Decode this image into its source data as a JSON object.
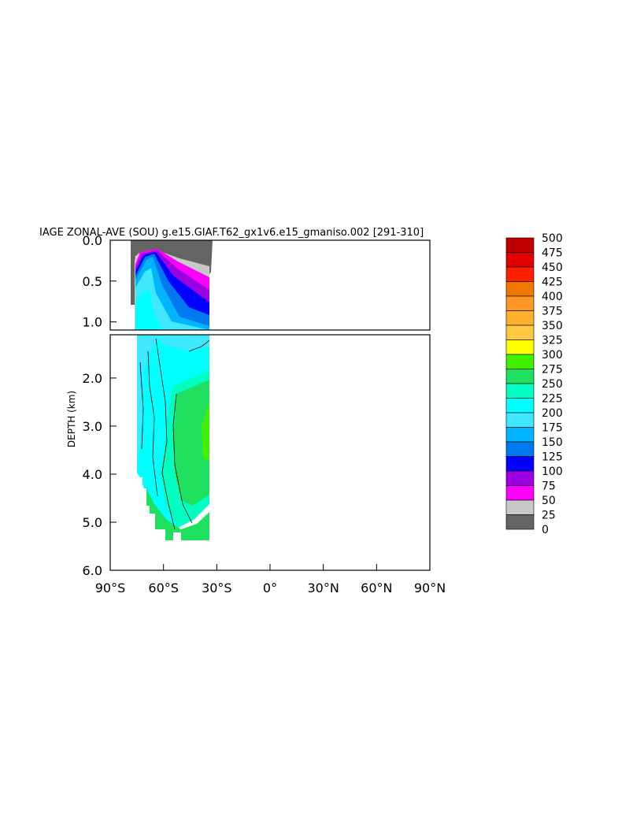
{
  "chart_data": {
    "type": "heatmap",
    "title": "IAGE ZONAL-AVE (SOU) g.e15.GIAF.T62_gx1v6.e15_gmaniso.002 [291-310]",
    "ylabel": "DEPTH (km)",
    "x_ticks": [
      "90°S",
      "60°S",
      "30°S",
      "0°",
      "30°N",
      "60°N",
      "90°N"
    ],
    "x_range": [
      -90,
      90
    ],
    "upper_panel": {
      "y_range": [
        0.0,
        1.1
      ],
      "y_ticks": [
        "0.0",
        "0.5",
        "1.0"
      ]
    },
    "lower_panel": {
      "y_range": [
        1.1,
        6.0
      ],
      "y_ticks": [
        "2.0",
        "3.0",
        "4.0",
        "5.0",
        "6.0"
      ]
    },
    "colorbar": {
      "levels": [
        "500",
        "475",
        "450",
        "425",
        "400",
        "375",
        "350",
        "325",
        "300",
        "275",
        "250",
        "225",
        "200",
        "175",
        "150",
        "125",
        "100",
        "75",
        "50",
        "25",
        "0"
      ],
      "colors": [
        "#c00000",
        "#e00000",
        "#ff2000",
        "#f07800",
        "#ff9628",
        "#ffb030",
        "#ffc840",
        "#ffff00",
        "#40f000",
        "#20e060",
        "#00ffc0",
        "#00ffff",
        "#40e8ff",
        "#00b4ff",
        "#0078f0",
        "#0000ff",
        "#9a00e0",
        "#ff00ff",
        "#c8c8c8",
        "#646464"
      ]
    },
    "data_extent": {
      "lon": [
        -78,
        -34
      ],
      "max_depth_km": 5.4
    },
    "legend_position": "right"
  }
}
